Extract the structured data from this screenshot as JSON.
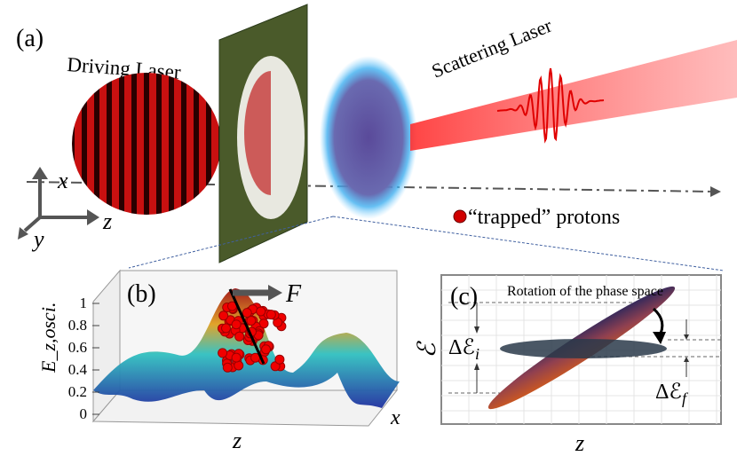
{
  "panel_a": {
    "label": "(a)",
    "driving_laser": "Driving Laser",
    "scattering_laser": "Scattering Laser",
    "axes": {
      "x": "x",
      "y": "y",
      "z": "z"
    },
    "legend": "“trapped” protons",
    "colors": {
      "laser_red": "#d01010",
      "plate_green": "#4a5a2a",
      "cloud_blue": "#3aa8e0",
      "proton_red": "#e00000"
    }
  },
  "panel_b": {
    "label": "(b)",
    "force_label": "F",
    "ylabel": "E_z,osci.",
    "yticks": [
      "1",
      "0.8",
      "0.6",
      "0.4",
      "0.2",
      "0"
    ],
    "xlabel": "z",
    "depth_label": "x"
  },
  "panel_c": {
    "label": "(c)",
    "title": "Rotation of the phase space",
    "ylabel": "ℰ",
    "xlabel": "z",
    "delta_i": "Δℰ",
    "delta_i_sub": "i",
    "delta_f": "Δℰ",
    "delta_f_sub": "f"
  }
}
